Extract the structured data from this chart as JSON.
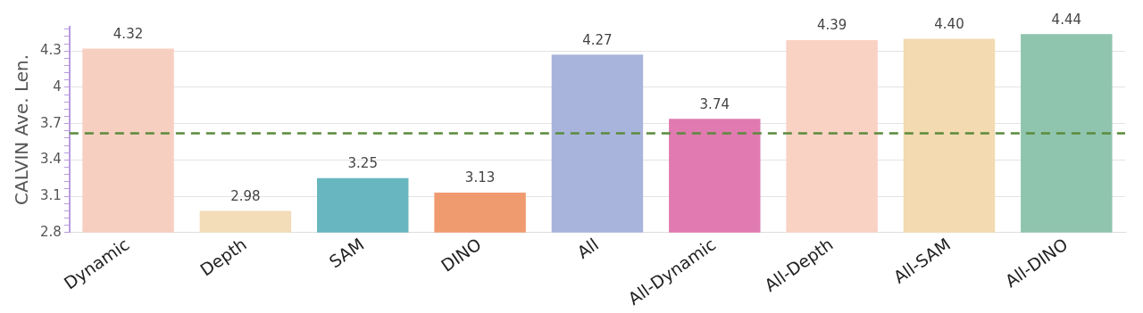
{
  "chart_data": {
    "type": "bar",
    "ylabel": "CALVIN Ave. Len.",
    "categories": [
      "Dynamic",
      "Depth",
      "SAM",
      "DINO",
      "All",
      "All-Dynamic",
      "All-Depth",
      "All-SAM",
      "All-DINO"
    ],
    "values": [
      4.32,
      2.98,
      3.25,
      3.13,
      4.27,
      3.74,
      4.39,
      4.4,
      4.44
    ],
    "value_labels": [
      "4.32",
      "2.98",
      "3.25",
      "3.13",
      "4.27",
      "3.74",
      "4.39",
      "4.40",
      "4.44"
    ],
    "colors": [
      "#f7cfc0",
      "#f3dcb8",
      "#68b6c0",
      "#f09a70",
      "#a9b4dc",
      "#e07ab0",
      "#f9d2c4",
      "#f3dab0",
      "#8fc4ae"
    ],
    "ylim": [
      2.8,
      4.5
    ],
    "yticks": [
      2.8,
      {
        "value": 2.86,
        "label": null
      },
      {
        "value": 2.92,
        "label": null
      },
      {
        "value": 2.98,
        "label": null
      },
      {
        "value": 3.04,
        "label": null
      },
      3.1,
      {
        "value": 3.16,
        "label": null
      },
      {
        "value": 3.22,
        "label": null
      },
      {
        "value": 3.28,
        "label": null
      },
      {
        "value": 3.34,
        "label": null
      },
      3.4,
      {
        "value": 3.46,
        "label": null
      },
      {
        "value": 3.52,
        "label": null
      },
      {
        "value": 3.58,
        "label": null
      },
      {
        "value": 3.64,
        "label": null
      },
      3.7,
      {
        "value": 3.76,
        "label": null
      },
      {
        "value": 3.82,
        "label": null
      },
      {
        "value": 3.88,
        "label": null
      },
      {
        "value": 3.94,
        "label": null
      },
      4,
      {
        "value": 4.06,
        "label": null
      },
      {
        "value": 4.12,
        "label": null
      },
      {
        "value": 4.18,
        "label": null
      },
      {
        "value": 4.24,
        "label": null
      },
      4.3,
      {
        "value": 4.36,
        "label": null
      },
      {
        "value": 4.42,
        "label": null
      },
      {
        "value": 4.48,
        "label": null
      }
    ],
    "grid": "y",
    "legend": false,
    "ref_lines": [
      {
        "axis": "y",
        "value": 3.62,
        "color": "#5b8a3c",
        "line_style": "dashed"
      }
    ]
  }
}
